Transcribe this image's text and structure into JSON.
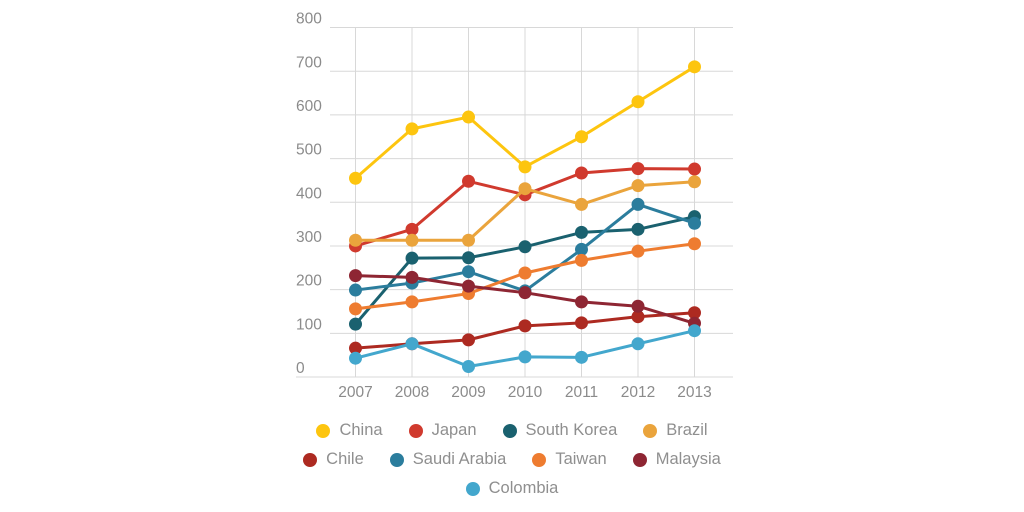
{
  "chart_data": {
    "type": "line",
    "title": "",
    "xlabel": "",
    "ylabel": "",
    "x_labels": [
      "2007",
      "2008",
      "2009",
      "2010",
      "2011",
      "2012",
      "2013"
    ],
    "ylim": [
      0,
      800
    ],
    "ytick_step": 100,
    "ytick_labels": [
      "0",
      "100",
      "200",
      "300",
      "400",
      "500",
      "600",
      "700",
      "800"
    ],
    "grid": true,
    "legend_position": "bottom",
    "legend_rows": [
      4,
      4,
      1
    ],
    "series": [
      {
        "name": "China",
        "color": "#fdc50f",
        "values": [
          455,
          568,
          595,
          481,
          550,
          630,
          710
        ]
      },
      {
        "name": "Japan",
        "color": "#d03a2e",
        "values": [
          300,
          338,
          448,
          417,
          467,
          477,
          476
        ]
      },
      {
        "name": "South Korea",
        "color": "#1a616f",
        "values": [
          121,
          272,
          273,
          298,
          331,
          338,
          367
        ]
      },
      {
        "name": "Brazil",
        "color": "#eaa43c",
        "values": [
          313,
          313,
          313,
          431,
          395,
          438,
          447
        ]
      },
      {
        "name": "Chile",
        "color": "#ad2a21",
        "values": [
          66,
          76,
          85,
          117,
          124,
          138,
          147
        ]
      },
      {
        "name": "Saudi Arabia",
        "color": "#2b7d9d",
        "values": [
          199,
          215,
          241,
          197,
          292,
          395,
          352
        ]
      },
      {
        "name": "Taiwan",
        "color": "#ee7c30",
        "values": [
          156,
          172,
          191,
          238,
          267,
          288,
          305
        ]
      },
      {
        "name": "Malaysia",
        "color": "#8e2633",
        "values": [
          232,
          228,
          208,
          193,
          172,
          162,
          123
        ]
      },
      {
        "name": "Colombia",
        "color": "#43a7cd",
        "values": [
          43,
          76,
          24,
          46,
          45,
          76,
          106
        ]
      }
    ]
  },
  "style": {
    "background": "#ffffff",
    "grid_color": "#d8d8d8",
    "axis_label_color": "#8b8b8b",
    "legend_text_color": "#8f8f8f"
  }
}
